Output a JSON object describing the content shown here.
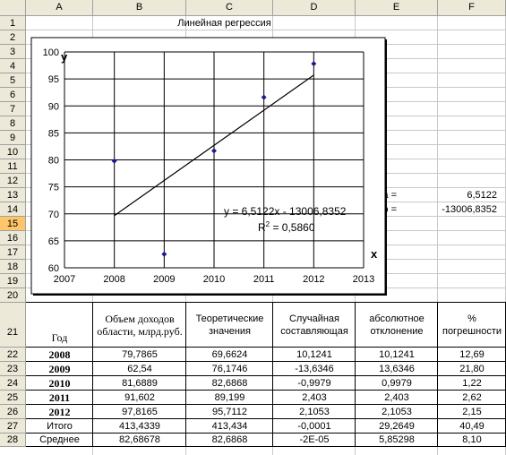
{
  "columns": [
    "A",
    "B",
    "C",
    "D",
    "E",
    "F"
  ],
  "rows": [
    "1",
    "2",
    "3",
    "4",
    "5",
    "6",
    "7",
    "8",
    "9",
    "10",
    "11",
    "12",
    "13",
    "14",
    "15",
    "16",
    "17",
    "18",
    "19",
    "20",
    "21",
    "22",
    "23",
    "24",
    "25",
    "26",
    "27",
    "28"
  ],
  "active_row": "15",
  "sheet_title": "Линейная регрессия",
  "params": {
    "a_label": "a =",
    "a_value": "6,5122",
    "b_label": "b =",
    "b_value": "-13006,8352"
  },
  "chart_data": {
    "type": "scatter",
    "x": [
      2008,
      2009,
      2010,
      2011,
      2012
    ],
    "y": [
      79.7865,
      62.54,
      81.6889,
      91.602,
      97.8165
    ],
    "trendline": {
      "slope": 6.5122,
      "intercept": -13006.8352,
      "x_from": 2008,
      "x_to": 2012
    },
    "xlabel": "x",
    "ylabel": "y",
    "xlim": [
      2007,
      2013
    ],
    "ylim": [
      60,
      100
    ],
    "x_ticks": [
      "2007",
      "2008",
      "2009",
      "2010",
      "2011",
      "2012",
      "2013"
    ],
    "y_ticks": [
      "60",
      "65",
      "70",
      "75",
      "80",
      "85",
      "90",
      "95",
      "100"
    ],
    "equation": "y = 6,5122x - 13006,8352",
    "r2_prefix": "R",
    "r2_sup": "2",
    "r2_suffix": " = 0,5860",
    "grid": true,
    "point_color": "#1A1A8C",
    "line_color": "#000000"
  },
  "table": {
    "headers": [
      "Год",
      "Объем доходов области, млрд.руб.",
      "Теоретические значения",
      "Случайная составляющая",
      "абсолютное отклонение",
      "% погрешности"
    ],
    "rows": [
      [
        "2008",
        "79,7865",
        "69,6624",
        "10,1241",
        "10,1241",
        "12,69"
      ],
      [
        "2009",
        "62,54",
        "76,1746",
        "-13,6346",
        "13,6346",
        "21,80"
      ],
      [
        "2010",
        "81,6889",
        "82,6868",
        "-0,9979",
        "0,9979",
        "1,22"
      ],
      [
        "2011",
        "91,602",
        "89,199",
        "2,403",
        "2,403",
        "2,62"
      ],
      [
        "2012",
        "97,8165",
        "95,7112",
        "2,1053",
        "2,1053",
        "2,15"
      ]
    ],
    "total_row": [
      "Итого",
      "413,4339",
      "413,434",
      "-0,0001",
      "29,2649",
      "40,49"
    ],
    "avg_row": [
      "Среднее",
      "82,68678",
      "82,6868",
      "-2E-05",
      "5,85298",
      "8,10"
    ]
  }
}
